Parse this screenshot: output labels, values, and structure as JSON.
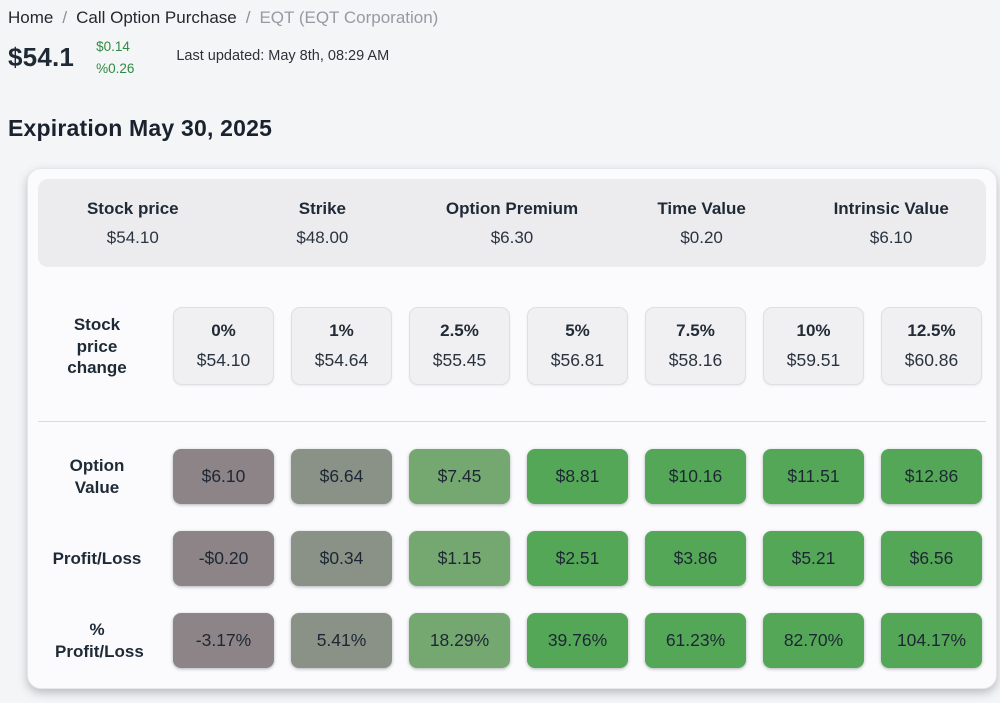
{
  "breadcrumb": {
    "separator": "/",
    "items": [
      {
        "label": "Home"
      },
      {
        "label": "Call Option Purchase"
      },
      {
        "label": "EQT (EQT Corporation)"
      }
    ]
  },
  "quote": {
    "price": "$54.1",
    "change_dollar": "$0.14",
    "change_percent": "%0.26",
    "last_updated": "Last updated: May 8th, 08:29 AM"
  },
  "heading": "Expiration May 30, 2025",
  "summary_stats": [
    {
      "label": "Stock price",
      "value": "$54.10"
    },
    {
      "label": "Strike",
      "value": "$48.00"
    },
    {
      "label": "Option Premium",
      "value": "$6.30"
    },
    {
      "label": "Time Value",
      "value": "$0.20"
    },
    {
      "label": "Intrinsic Value",
      "value": "$6.10"
    }
  ],
  "matrix": {
    "row_labels": {
      "price_change": "Stock price change",
      "option_value": "Option Value",
      "profit_loss": "Profit/Loss",
      "pct_profit_loss": "% Profit/Loss"
    },
    "columns": [
      {
        "pct": "0%",
        "price": "$54.10",
        "option_value": "$6.10",
        "profit_loss": "-$0.20",
        "pct_profit_loss": "-3.17%",
        "box_color": "#8d8487"
      },
      {
        "pct": "1%",
        "price": "$54.64",
        "option_value": "$6.64",
        "profit_loss": "$0.34",
        "pct_profit_loss": "5.41%",
        "box_color": "#8a9287"
      },
      {
        "pct": "2.5%",
        "price": "$55.45",
        "option_value": "$7.45",
        "profit_loss": "$1.15",
        "pct_profit_loss": "18.29%",
        "box_color": "#75a871"
      },
      {
        "pct": "5%",
        "price": "$56.81",
        "option_value": "$8.81",
        "profit_loss": "$2.51",
        "pct_profit_loss": "39.76%",
        "box_color": "#54a757"
      },
      {
        "pct": "7.5%",
        "price": "$58.16",
        "option_value": "$10.16",
        "profit_loss": "$3.86",
        "pct_profit_loss": "61.23%",
        "box_color": "#54a757"
      },
      {
        "pct": "10%",
        "price": "$59.51",
        "option_value": "$11.51",
        "profit_loss": "$5.21",
        "pct_profit_loss": "82.70%",
        "box_color": "#54a757"
      },
      {
        "pct": "12.5%",
        "price": "$60.86",
        "option_value": "$12.86",
        "profit_loss": "$6.56",
        "pct_profit_loss": "104.17%",
        "box_color": "#54a757"
      }
    ]
  },
  "colors": {
    "accent_green_text": "#2f8a44",
    "tone_loss": "#8d8487",
    "tone_flat": "#8a9287",
    "tone_gain_low": "#75a871",
    "tone_gain": "#54a757",
    "neutral_box_bg": "#f0f0f3",
    "stats_band_bg": "#ececef",
    "text_dark": "#1f2a37"
  }
}
